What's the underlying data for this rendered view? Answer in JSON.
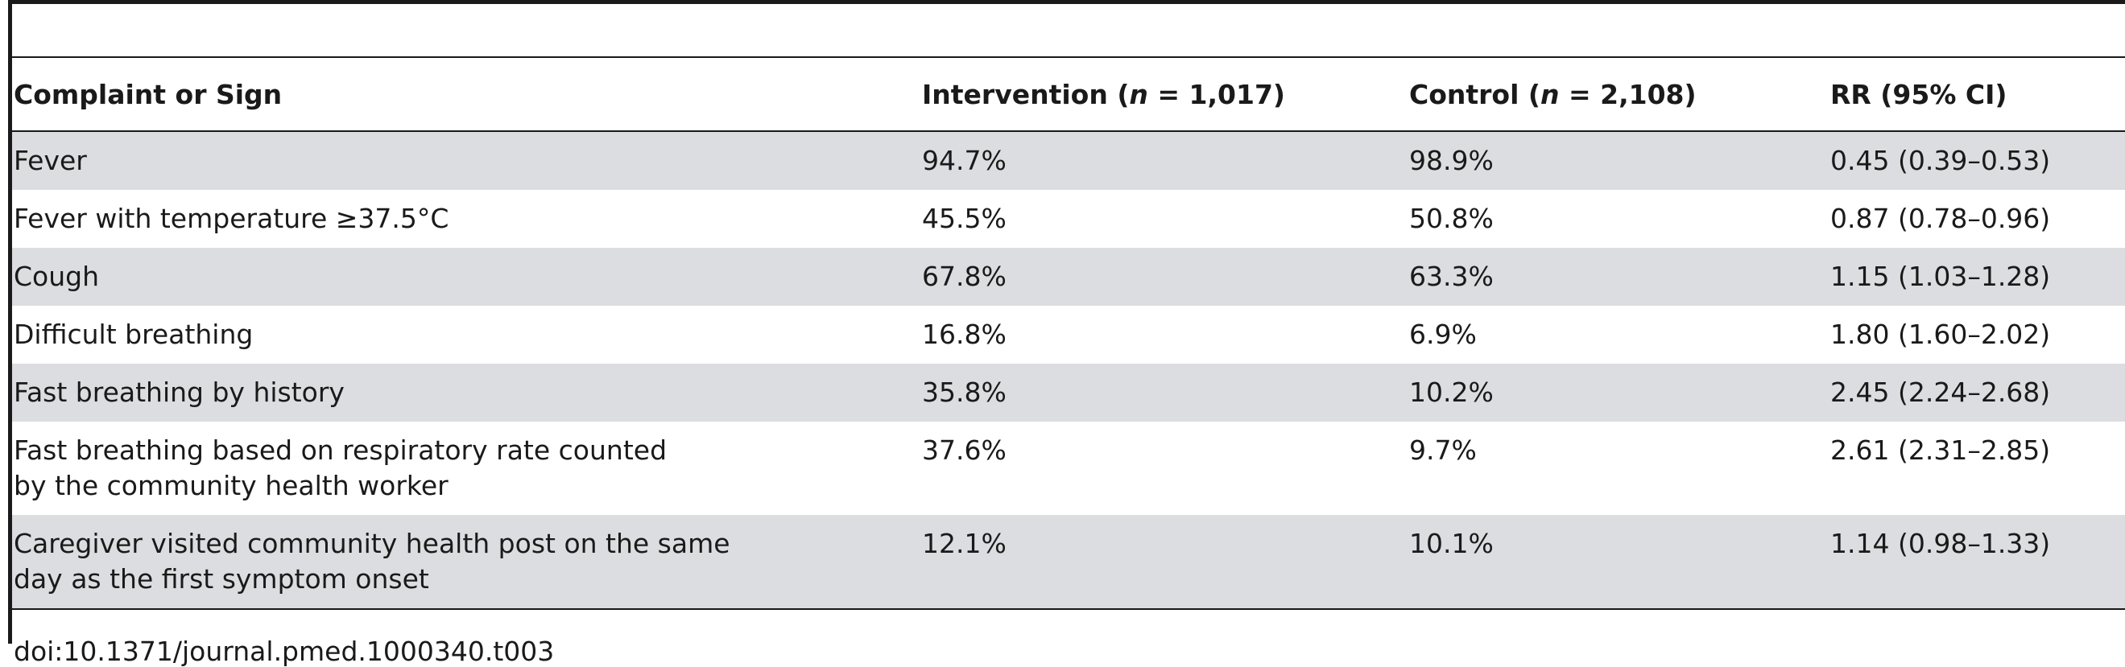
{
  "table": {
    "headers": {
      "col1": "Complaint or Sign",
      "col2_prefix": "Intervention (",
      "col2_n": "n",
      "col2_suffix": " = 1,017)",
      "col3_prefix": "Control (",
      "col3_n": "n",
      "col3_suffix": " = 2,108)",
      "col4": "RR (95% CI)"
    },
    "rows": [
      {
        "label": [
          "Fever"
        ],
        "intervention": "94.7%",
        "control": "98.9%",
        "rr": "0.45 (0.39–0.53)"
      },
      {
        "label": [
          "Fever with temperature ≥37.5°C"
        ],
        "intervention": "45.5%",
        "control": "50.8%",
        "rr": "0.87 (0.78–0.96)"
      },
      {
        "label": [
          "Cough"
        ],
        "intervention": "67.8%",
        "control": "63.3%",
        "rr": "1.15 (1.03–1.28)"
      },
      {
        "label": [
          "Difficult breathing"
        ],
        "intervention": "16.8%",
        "control": "6.9%",
        "rr": "1.80 (1.60–2.02)"
      },
      {
        "label": [
          "Fast breathing by history"
        ],
        "intervention": "35.8%",
        "control": "10.2%",
        "rr": "2.45 (2.24–2.68)"
      },
      {
        "label": [
          "Fast breathing based on respiratory rate counted",
          "by the community health worker"
        ],
        "intervention": "37.6%",
        "control": "9.7%",
        "rr": "2.61 (2.31–2.85)"
      },
      {
        "label": [
          "Caregiver visited community health post on the same",
          "day as the first symptom onset"
        ],
        "intervention": "12.1%",
        "control": "10.1%",
        "rr": "1.14 (0.98–1.33)"
      }
    ]
  },
  "footnote": "doi:10.1371/journal.pmed.1000340.t003"
}
